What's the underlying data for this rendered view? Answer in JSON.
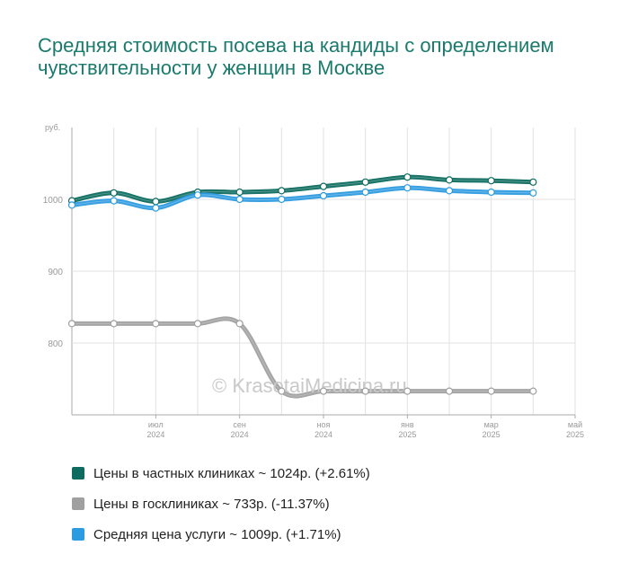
{
  "title": "Средняя стоимость посева на кандиды с определением чувствительности у женщин в Москве",
  "watermark": "© KrasotaiMedicina.ru",
  "chart_data": {
    "type": "line",
    "y_unit": "руб.",
    "ylim": [
      700,
      1100
    ],
    "yticks": [
      800,
      900,
      1000
    ],
    "grid": true,
    "legend_position": "bottom",
    "x": [
      "2024-05",
      "2024-06",
      "2024-07",
      "2024-08",
      "2024-09",
      "2024-10",
      "2024-11",
      "2024-12",
      "2025-01",
      "2025-02",
      "2025-03",
      "2025-04",
      "2025-05"
    ],
    "x_tick_labels": [
      {
        "month": "июл",
        "year": "2024"
      },
      {
        "month": "сен",
        "year": "2024"
      },
      {
        "month": "ноя",
        "year": "2024"
      },
      {
        "month": "янв",
        "year": "2025"
      },
      {
        "month": "мар",
        "year": "2025"
      },
      {
        "month": "май",
        "year": "2025"
      }
    ],
    "x_tick_indices": [
      2,
      4,
      6,
      8,
      10,
      12
    ],
    "series": [
      {
        "name": "Цены в госклиниках ~ 733р. (-11.37%)",
        "color": "#a0a0a0",
        "values": [
          827,
          827,
          827,
          827,
          827,
          733,
          733,
          733,
          733,
          733,
          733,
          733,
          null
        ]
      },
      {
        "name": "Цены в частных клиниках ~ 1024р. (+2.61%)",
        "color": "#0d6b5f",
        "values": [
          998,
          1009,
          997,
          1010,
          1010,
          1012,
          1018,
          1024,
          1031,
          1027,
          1026,
          1024,
          null
        ]
      },
      {
        "name": "Средняя цена услуги ~ 1009р. (+1.71%)",
        "color": "#2d9be0",
        "values": [
          992,
          998,
          988,
          1006,
          1000,
          1000,
          1005,
          1010,
          1016,
          1012,
          1010,
          1009,
          null
        ]
      }
    ],
    "legend_order": [
      1,
      0,
      2
    ]
  }
}
